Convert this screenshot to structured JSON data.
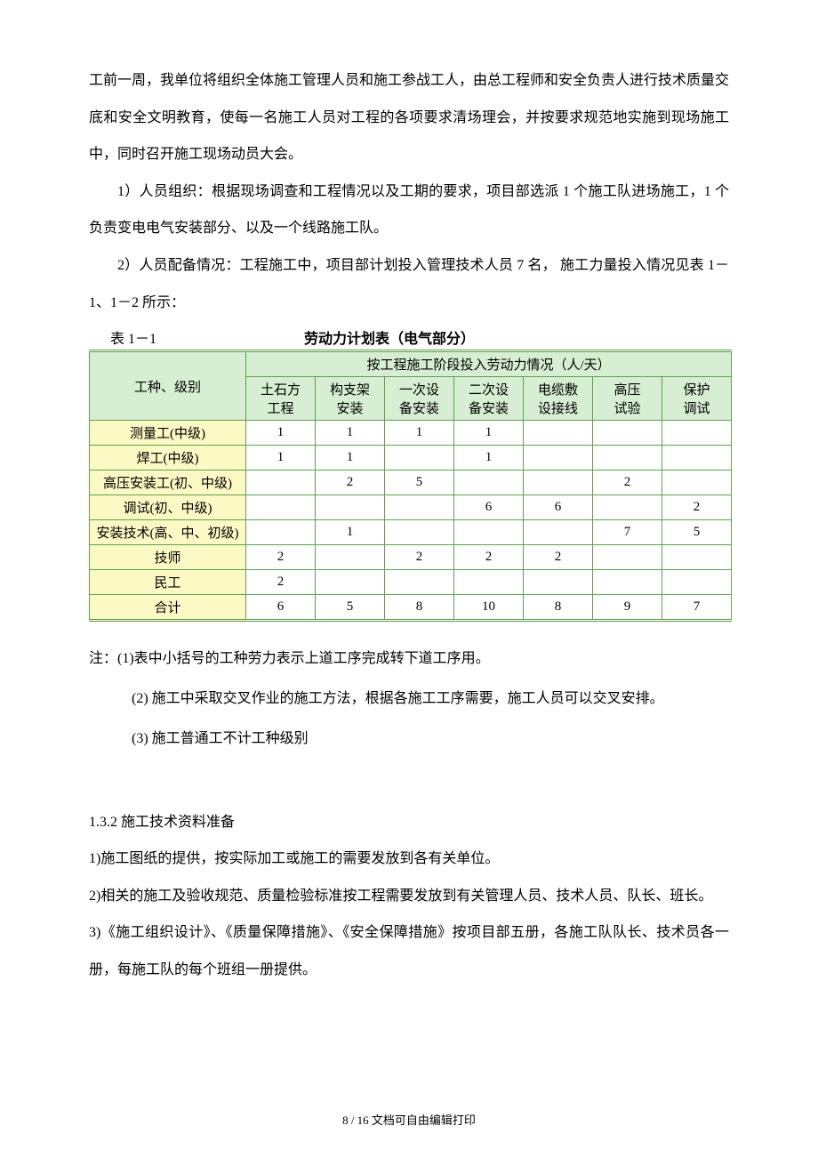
{
  "paragraphs": {
    "p1": "工前一周，我单位将组织全体施工管理人员和施工参战工人，由总工程师和安全负责人进行技术质量交底和安全文明教育，使每一名施工人员对工程的各项要求清场理会，并按要求规范地实施到现场施工中，同时召开施工现场动员大会。",
    "p2": "1）人员组织：根据现场调查和工程情况以及工期的要求，项目部选派 1 个施工队进场施工，1 个负责变电电气安装部分、以及一个线路施工队。",
    "p3": "2）人员配备情况：工程施工中，项目部计划投入管理技术人员 7 名，  施工力量投入情况见表 1－1、1－2 所示："
  },
  "table": {
    "label": "表 1－1",
    "title": "劳动力计划表（电气部分）",
    "row_header_label": "工种、级别",
    "group_header": "按工程施工阶段投入劳动力情况（人/天）",
    "columns": [
      {
        "l1": "土石方",
        "l2": "工程"
      },
      {
        "l1": "构支架",
        "l2": "安装"
      },
      {
        "l1": "一次设",
        "l2": "备安装"
      },
      {
        "l1": "二次设",
        "l2": "备安装"
      },
      {
        "l1": "电缆敷",
        "l2": "设接线"
      },
      {
        "l1": "高压",
        "l2": "试验"
      },
      {
        "l1": "保护",
        "l2": "调试"
      }
    ],
    "rows": [
      {
        "label": "测量工(中级)",
        "cells": [
          "1",
          "1",
          "1",
          "1",
          "",
          "",
          ""
        ]
      },
      {
        "label": "焊工(中级)",
        "cells": [
          "1",
          "1",
          "",
          "1",
          "",
          "",
          ""
        ]
      },
      {
        "label": "高压安装工(初、中级)",
        "cells": [
          "",
          "2",
          "5",
          "",
          "",
          "2",
          ""
        ]
      },
      {
        "label": "调试(初、中级)",
        "cells": [
          "",
          "",
          "",
          "6",
          "6",
          "",
          "2"
        ]
      },
      {
        "label": "安装技术(高、中、初级)",
        "cells": [
          "",
          "1",
          "",
          "",
          "",
          "7",
          "5"
        ]
      },
      {
        "label": "技师",
        "cells": [
          "2",
          "",
          "2",
          "2",
          "2",
          "",
          ""
        ]
      },
      {
        "label": "民工",
        "cells": [
          "2",
          "",
          "",
          "",
          "",
          "",
          ""
        ]
      },
      {
        "label": "合计",
        "cells": [
          "6",
          "5",
          "8",
          "10",
          "8",
          "9",
          "7"
        ]
      }
    ],
    "header_bg": "#d6eed1",
    "label_bg": "#fdf9c4",
    "border_color": "#5fa04f"
  },
  "notes": {
    "n1": "注：(1)表中小括号的工种劳力表示上道工序完成转下道工序用。",
    "n2": "(2) 施工中采取交叉作业的施工方法，根据各施工工序需要，施工人员可以交叉安排。",
    "n3": "(3) 施工普通工不计工种级别"
  },
  "section": {
    "heading": "1.3.2 施工技术资料准备",
    "s1": "1)施工图纸的提供，按实际加工或施工的需要发放到各有关单位。",
    "s2": "2)相关的施工及验收规范、质量检验标准按工程需要发放到有关管理人员、技术人员、队长、班长。",
    "s3": "3)《施工组织设计》、《质量保障措施》、《安全保障措施》按项目部五册，各施工队队长、技术员各一册，每施工队的每个班组一册提供。"
  },
  "footer": "8 / 16 文档可自由编辑打印"
}
